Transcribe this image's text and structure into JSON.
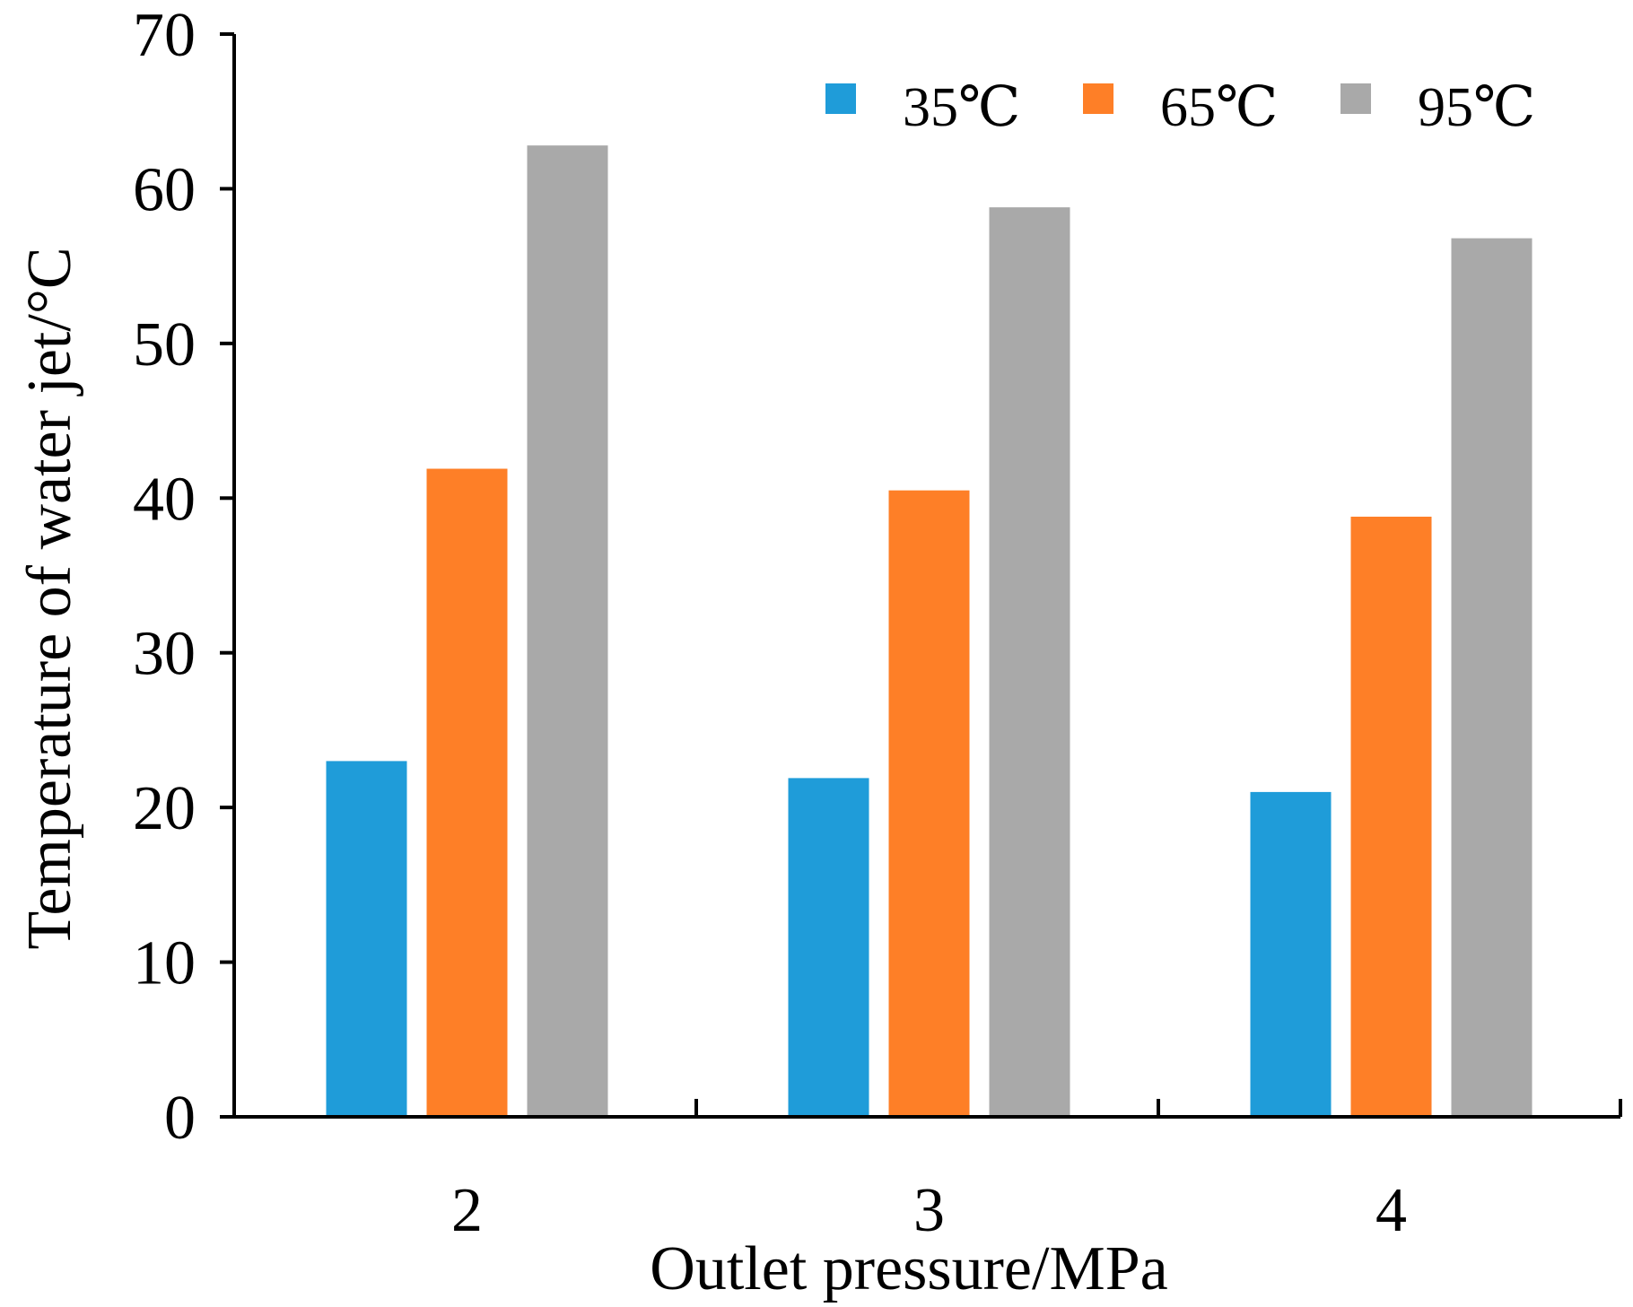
{
  "chart_data": {
    "type": "bar",
    "title": "",
    "xlabel": "Outlet pressure/MPa",
    "ylabel": "Temperature of water jet/°C",
    "categories": [
      "2",
      "3",
      "4"
    ],
    "series": [
      {
        "name": "35℃",
        "color": "#1f9cd9",
        "values": [
          23.0,
          21.9,
          21.0
        ]
      },
      {
        "name": "65℃",
        "color": "#fe7f27",
        "values": [
          41.9,
          40.5,
          38.8
        ]
      },
      {
        "name": "95℃",
        "color": "#a9a9a9",
        "values": [
          62.8,
          58.8,
          56.8
        ]
      }
    ],
    "ylim": [
      0,
      70
    ],
    "yticks": [
      0,
      10,
      20,
      30,
      40,
      50,
      60,
      70
    ],
    "ytick_labels": [
      "0",
      "10",
      "20",
      "30",
      "40",
      "50",
      "60",
      "70"
    ],
    "grid": false,
    "legend": "top-right"
  }
}
